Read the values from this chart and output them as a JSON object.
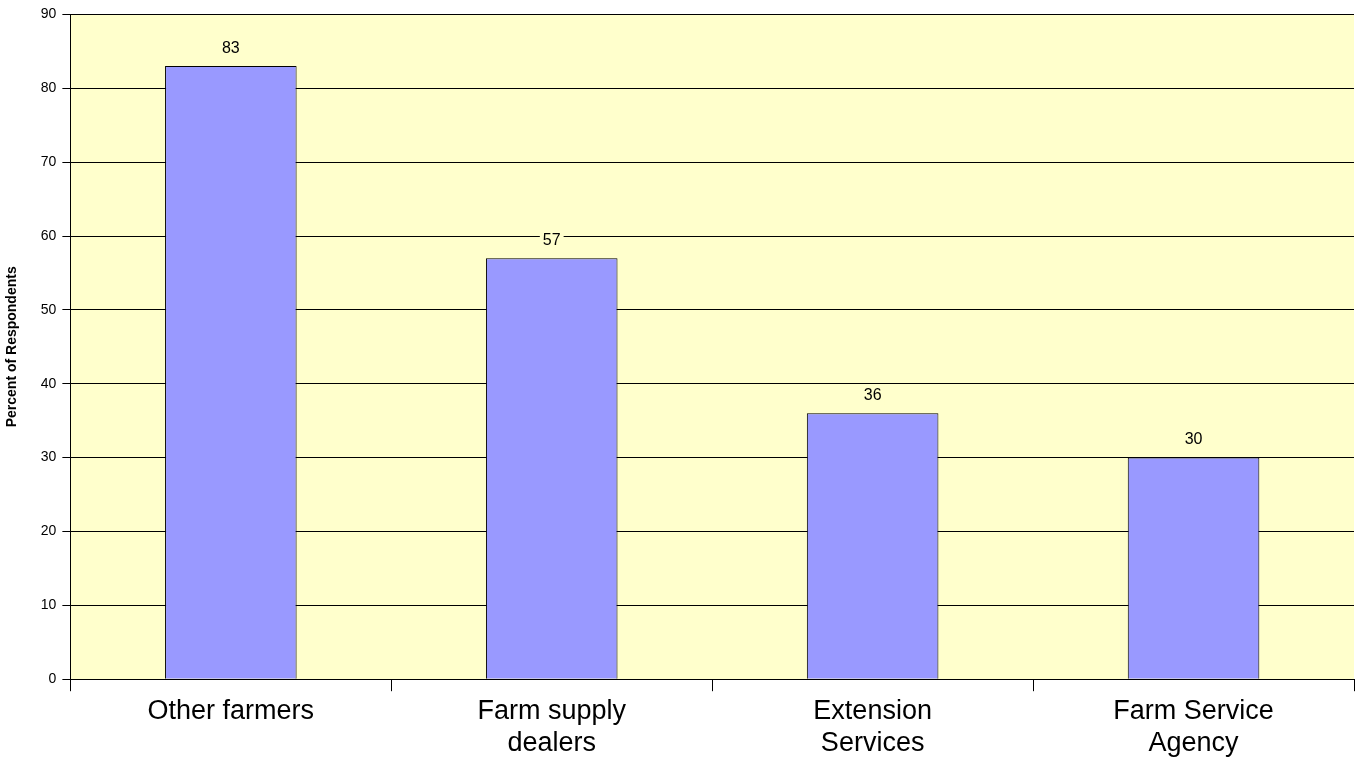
{
  "chart_data": {
    "type": "bar",
    "ylabel": "Percent of Respondents",
    "categories": [
      "Other farmers",
      "Farm supply dealers",
      "Extension Services",
      "Farm Service Agency"
    ],
    "values": [
      83,
      57,
      36,
      30
    ],
    "color": "#9999ff",
    "ylim": [
      0,
      90
    ],
    "yticks": [
      0,
      10,
      20,
      30,
      40,
      50,
      60,
      70,
      80,
      90
    ],
    "grid": "y",
    "data_labels": true,
    "legend": false
  }
}
